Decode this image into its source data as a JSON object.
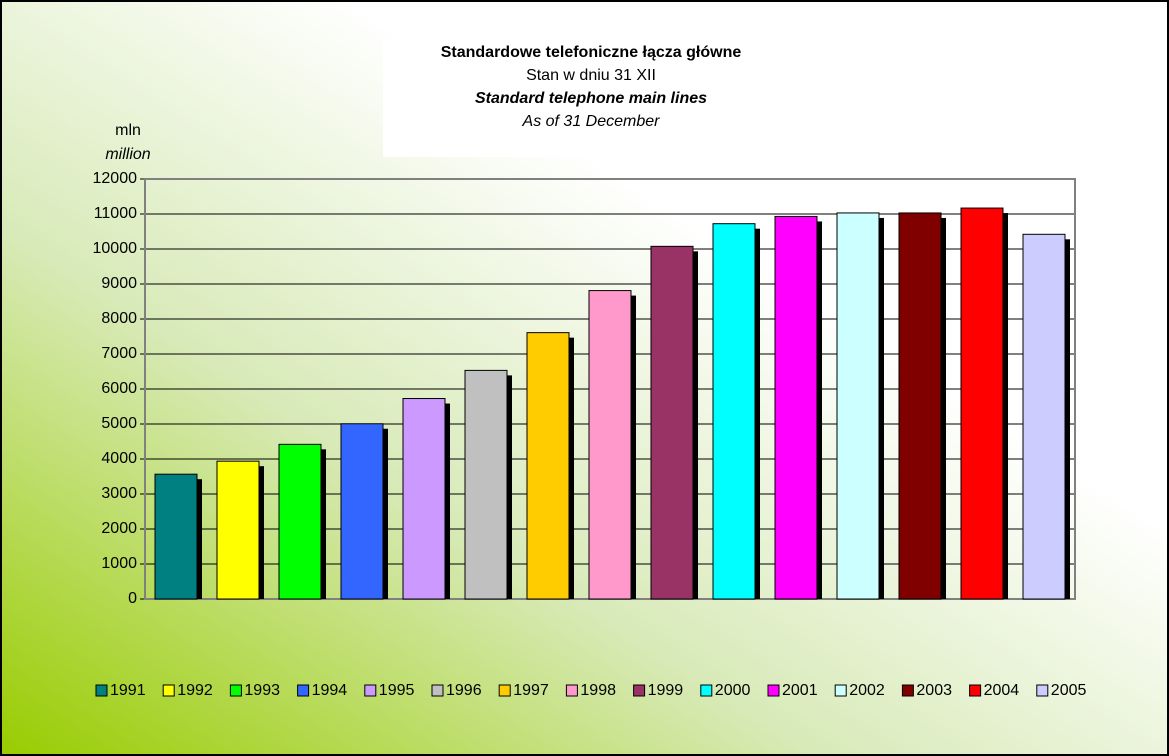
{
  "chart_data": {
    "type": "bar",
    "title": "Standardowe telefoniczne łącza główne",
    "subtitle": "Stan w dniu 31 XII",
    "title_en": "Standard telephone main lines",
    "subtitle_en": "As of 31 December",
    "ylabel": "mln",
    "ylabel_en": "million",
    "categories": [
      "1991",
      "1992",
      "1993",
      "1994",
      "1995",
      "1996",
      "1997",
      "1998",
      "1999",
      "2000",
      "2001",
      "2002",
      "2003",
      "2004",
      "2005"
    ],
    "values": [
      3566,
      3938,
      4419,
      5007,
      5728,
      6532,
      7610,
      8812,
      10076,
      10723,
      10930,
      11030,
      11030,
      11170,
      10420
    ],
    "colors": [
      "#008080",
      "#ffff00",
      "#00ff00",
      "#3366ff",
      "#cc99ff",
      "#c0c0c0",
      "#ffcc00",
      "#ff99cc",
      "#993366",
      "#00ffff",
      "#ff00ff",
      "#ccffff",
      "#800000",
      "#ff0000",
      "#ccccff"
    ],
    "ylim": [
      0,
      12000
    ],
    "yticks": [
      0,
      1000,
      2000,
      3000,
      4000,
      5000,
      6000,
      7000,
      8000,
      9000,
      10000,
      11000,
      12000
    ],
    "grid": true,
    "legend": "bottom"
  }
}
